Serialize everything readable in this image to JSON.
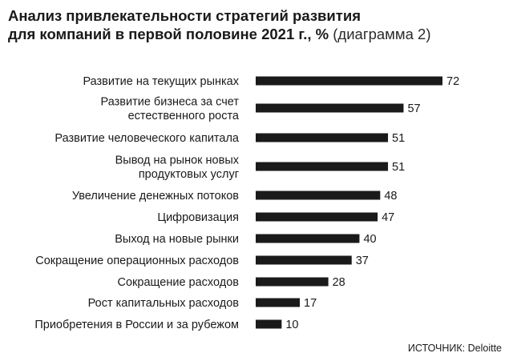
{
  "title": {
    "bold_line1": "Анализ привлекательности стратегий развития",
    "bold_line2": "для компаний в первой половине 2021 г., %",
    "suffix": " (диаграмма 2)"
  },
  "source": "ИСТОЧНИК: Deloitte",
  "chart_data": {
    "type": "bar",
    "orientation": "horizontal",
    "title": "Анализ привлекательности стратегий развития для компаний в первой половине 2021 г., % (диаграмма 2)",
    "categories": [
      [
        "Развитие на текущих рынках"
      ],
      [
        "Развитие бизнеса за счет",
        "естественного роста"
      ],
      [
        "Развитие человеческого капитала"
      ],
      [
        "Вывод на рынок новых",
        "продуктовых услуг"
      ],
      [
        "Увеличение денежных потоков"
      ],
      [
        "Цифровизация"
      ],
      [
        "Выход на новые рынки"
      ],
      [
        "Сокращение операционных расходов"
      ],
      [
        "Сокращение расходов"
      ],
      [
        "Рост капитальных расходов"
      ],
      [
        "Приобретения в России и за рубежом"
      ]
    ],
    "values": [
      72,
      57,
      51,
      51,
      48,
      47,
      40,
      37,
      28,
      17,
      10
    ],
    "bar_color": "#1a1a1a",
    "xlim": [
      0,
      72
    ],
    "grid": false,
    "legend": "none"
  }
}
